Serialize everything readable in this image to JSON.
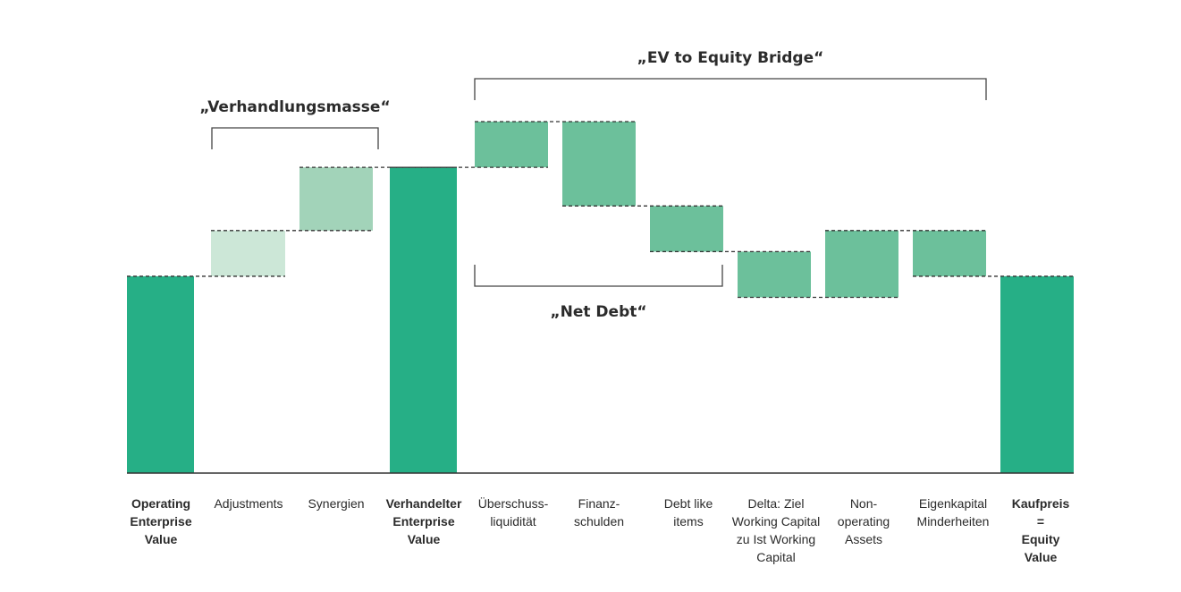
{
  "chart_data": {
    "type": "bar",
    "subtype": "waterfall",
    "title": "",
    "xlabel": "",
    "ylabel": "",
    "ylim": [
      0,
      100
    ],
    "grid": false,
    "legend": "none",
    "colors": {
      "total": "#26AF86",
      "adjustments": "#CCE7D7",
      "synergies": "#A2D3B9",
      "bridge": "#6CC09B",
      "connector": "#333333",
      "axis": "#333333",
      "bracket": "#444444"
    },
    "categories": [
      {
        "lines": [
          "Operating",
          "Enterprise",
          "Value"
        ],
        "bold": true
      },
      {
        "lines": [
          "Adjustments"
        ],
        "bold": false
      },
      {
        "lines": [
          "Synergien"
        ],
        "bold": false
      },
      {
        "lines": [
          "Verhandelter",
          "Enterprise",
          "Value"
        ],
        "bold": true
      },
      {
        "lines": [
          "Überschuss-",
          "liquidität"
        ],
        "bold": false
      },
      {
        "lines": [
          "Finanz-",
          "schulden"
        ],
        "bold": false
      },
      {
        "lines": [
          "Debt like",
          "items"
        ],
        "bold": false
      },
      {
        "lines": [
          "Delta: Ziel",
          "Working Capital",
          "zu Ist Working",
          "Capital"
        ],
        "bold": false
      },
      {
        "lines": [
          "Non-",
          "operating",
          "Assets"
        ],
        "bold": false
      },
      {
        "lines": [
          "Eigenkapital",
          "Minderheiten"
        ],
        "bold": false
      },
      {
        "lines": [
          "Kaufpreis",
          "=",
          "Equity",
          "Value"
        ],
        "bold": true
      }
    ],
    "bars": [
      {
        "start": 0,
        "end": 56,
        "kind": "total"
      },
      {
        "start": 56,
        "end": 69,
        "kind": "adjustments"
      },
      {
        "start": 69,
        "end": 87,
        "kind": "synergies"
      },
      {
        "start": 0,
        "end": 87,
        "kind": "total"
      },
      {
        "start": 87,
        "end": 100,
        "kind": "bridge"
      },
      {
        "start": 100,
        "end": 76,
        "kind": "bridge"
      },
      {
        "start": 76,
        "end": 63,
        "kind": "bridge"
      },
      {
        "start": 63,
        "end": 50,
        "kind": "bridge"
      },
      {
        "start": 50,
        "end": 69,
        "kind": "bridge"
      },
      {
        "start": 69,
        "end": 56,
        "kind": "bridge"
      },
      {
        "start": 0,
        "end": 56,
        "kind": "total"
      }
    ],
    "annotations": [
      {
        "text": "„EV to Equity Bridge“",
        "from": 4,
        "to": 9,
        "position": "above"
      },
      {
        "text": "„Verhandlungsmasse“",
        "from": 1,
        "to": 2,
        "position": "above"
      },
      {
        "text": "„Net Debt“",
        "from": 4,
        "to": 6,
        "position": "below"
      }
    ]
  }
}
